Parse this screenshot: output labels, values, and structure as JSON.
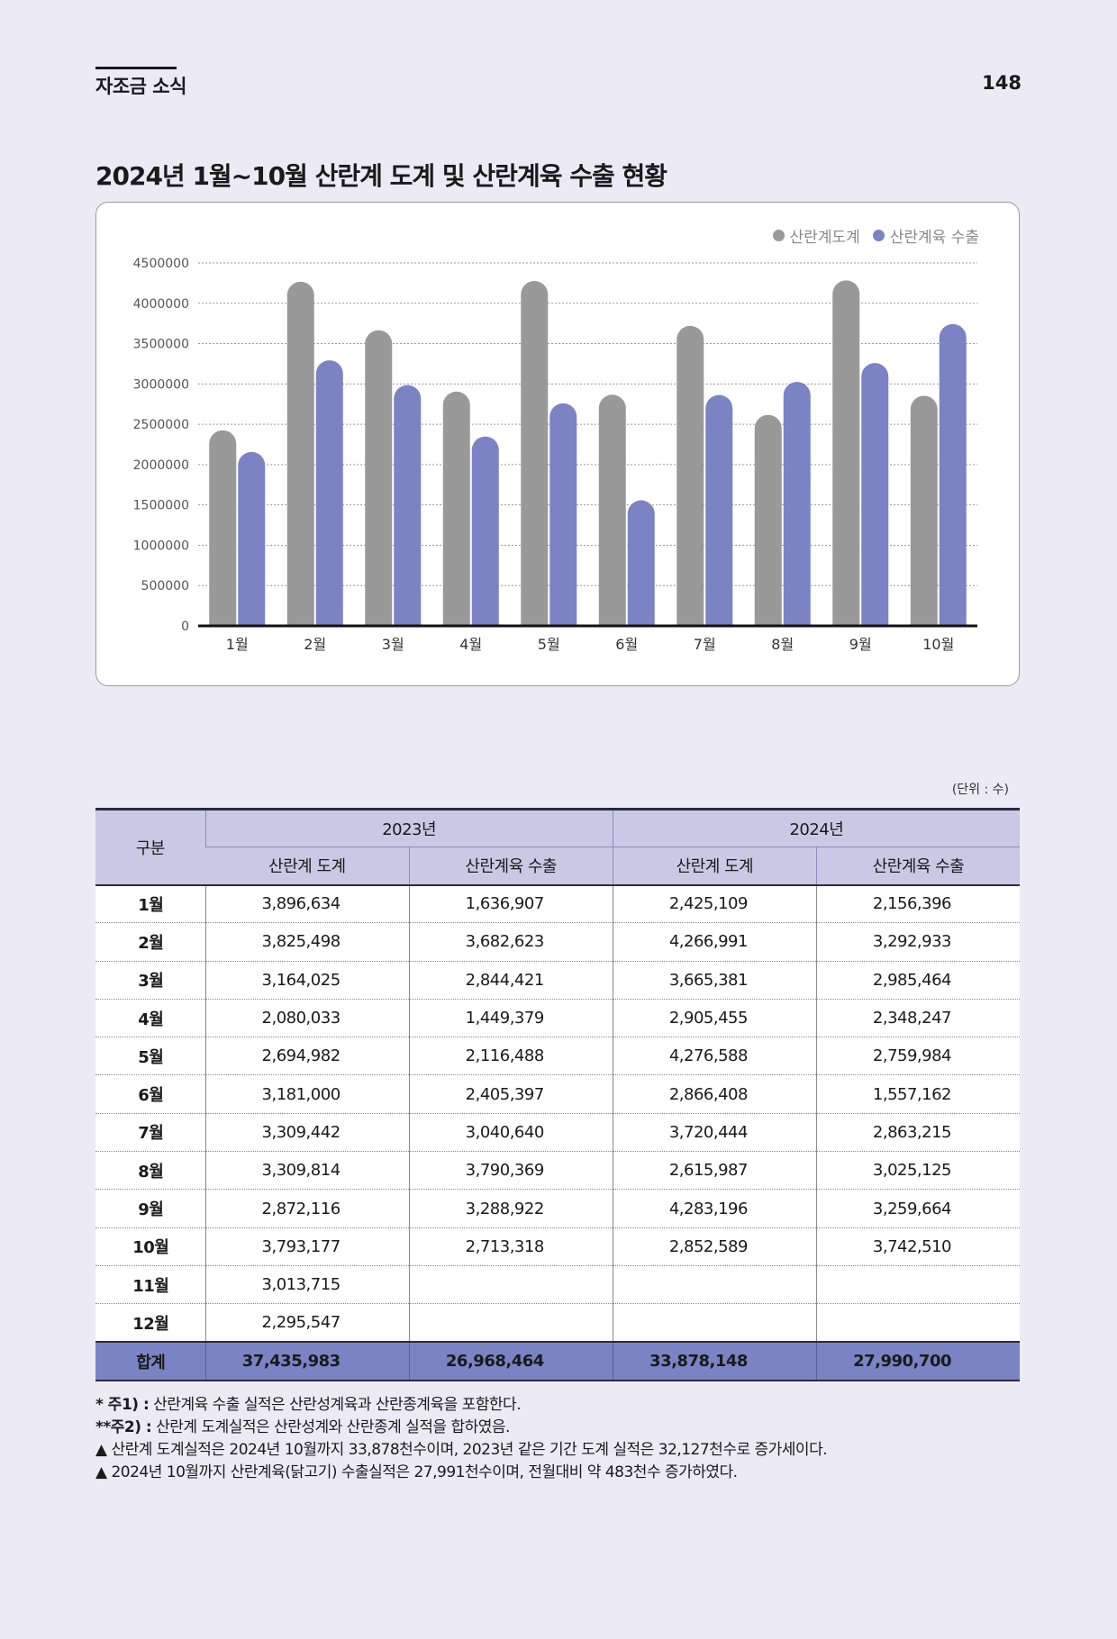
{
  "header": {
    "section_title": "자조금 소식",
    "page_number": "148"
  },
  "chart_heading": "2024년 1월~10월 산란계 도계 및 산란계육 수출 현황",
  "chart_data": {
    "type": "bar",
    "categories": [
      "1월",
      "2월",
      "3월",
      "4월",
      "5월",
      "6월",
      "7월",
      "8월",
      "9월",
      "10월"
    ],
    "series": [
      {
        "name": "산란계도계",
        "color": "#999999",
        "values": [
          2425109,
          4266991,
          3665381,
          2905455,
          4276588,
          2866408,
          3720444,
          2615987,
          4283196,
          2852589
        ]
      },
      {
        "name": "산란계육 수출",
        "color": "#7b83c4",
        "values": [
          2156396,
          3292933,
          2985464,
          2348247,
          2759984,
          1557162,
          2863215,
          3025125,
          3259664,
          3742510
        ]
      }
    ],
    "yticks": [
      "0",
      "500000",
      "1000000",
      "1500000",
      "2000000",
      "2500000",
      "3000000",
      "3500000",
      "4000000",
      "4500000"
    ],
    "ylim": [
      0,
      4500000
    ],
    "grid": true,
    "legend_position": "top-right"
  },
  "unit_note": "(단위 : 수)",
  "table": {
    "row_header": "구분",
    "years": [
      "2023년",
      "2024년"
    ],
    "sub_headers": [
      "산란계 도계",
      "산란계육 수출",
      "산란계 도계",
      "산란계육 수출"
    ],
    "rows": [
      {
        "month": "1월",
        "c1": "3,896,634",
        "c2": "1,636,907",
        "c3": "2,425,109",
        "c4": "2,156,396"
      },
      {
        "month": "2월",
        "c1": "3,825,498",
        "c2": "3,682,623",
        "c3": "4,266,991",
        "c4": "3,292,933"
      },
      {
        "month": "3월",
        "c1": "3,164,025",
        "c2": "2,844,421",
        "c3": "3,665,381",
        "c4": "2,985,464"
      },
      {
        "month": "4월",
        "c1": "2,080,033",
        "c2": "1,449,379",
        "c3": "2,905,455",
        "c4": "2,348,247"
      },
      {
        "month": "5월",
        "c1": "2,694,982",
        "c2": "2,116,488",
        "c3": "4,276,588",
        "c4": "2,759,984"
      },
      {
        "month": "6월",
        "c1": "3,181,000",
        "c2": "2,405,397",
        "c3": "2,866,408",
        "c4": "1,557,162"
      },
      {
        "month": "7월",
        "c1": "3,309,442",
        "c2": "3,040,640",
        "c3": "3,720,444",
        "c4": "2,863,215"
      },
      {
        "month": "8월",
        "c1": "3,309,814",
        "c2": "3,790,369",
        "c3": "2,615,987",
        "c4": "3,025,125"
      },
      {
        "month": "9월",
        "c1": "2,872,116",
        "c2": "3,288,922",
        "c3": "4,283,196",
        "c4": "3,259,664"
      },
      {
        "month": "10월",
        "c1": "3,793,177",
        "c2": "2,713,318",
        "c3": "2,852,589",
        "c4": "3,742,510"
      },
      {
        "month": "11월",
        "c1": "3,013,715",
        "c2": "",
        "c3": "",
        "c4": ""
      },
      {
        "month": "12월",
        "c1": "2,295,547",
        "c2": "",
        "c3": "",
        "c4": ""
      }
    ],
    "total": {
      "label": "합계",
      "c1": "37,435,983",
      "c2": "26,968,464",
      "c3": "33,878,148",
      "c4": "27,990,700"
    }
  },
  "notes": [
    {
      "label": "* 주1) :",
      "text": " 산란계육 수출 실적은 산란성계육과 산란종계육을 포함한다."
    },
    {
      "label": "**주2) :",
      "text": " 산란계 도계실적은 산란성계와 산란종계 실적을 합하였음."
    },
    {
      "label": "",
      "text": "▲ 산란계 도계실적은 2024년 10월까지 33,878천수이며, 2023년 같은 기간 도계  실적은 32,127천수로 증가세이다."
    },
    {
      "label": "",
      "text": "▲ 2024년 10월까지 산란계육(닭고기) 수출실적은 27,991천수이며, 전월대비 약 483천수 증가하였다."
    }
  ]
}
